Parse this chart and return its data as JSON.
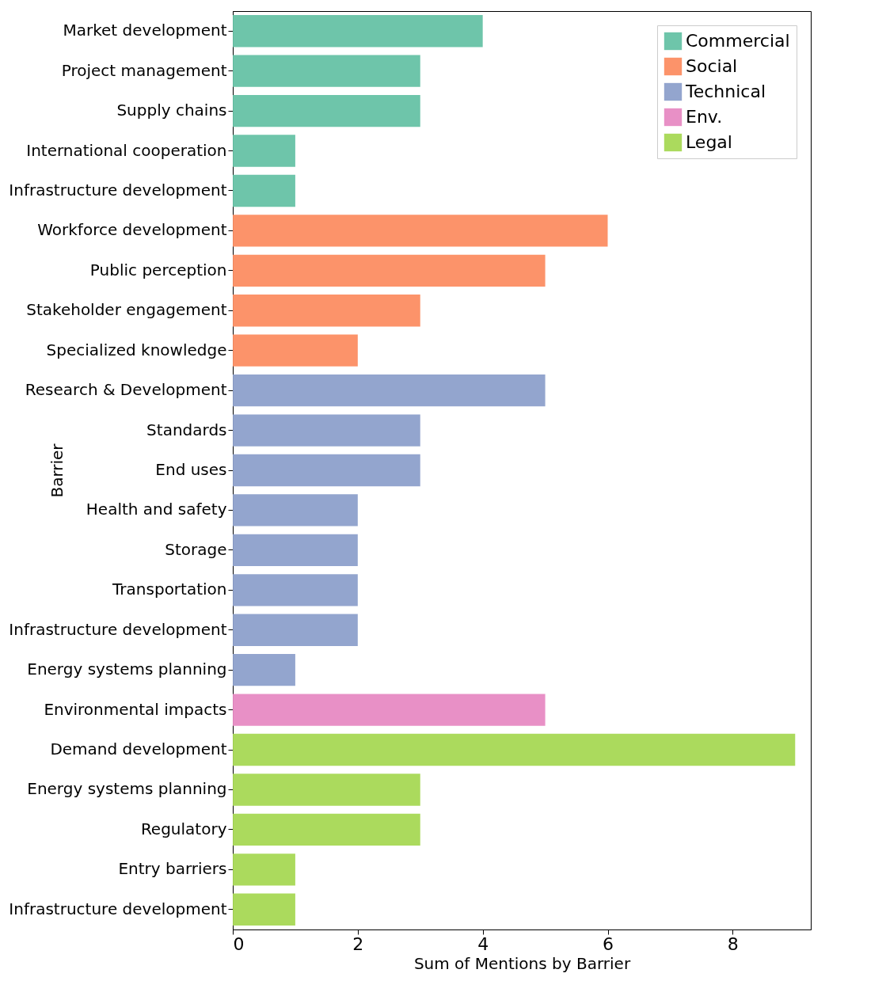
{
  "chart_data": {
    "type": "bar",
    "orientation": "horizontal",
    "xlabel": "Sum of Mentions by Barrier",
    "ylabel": "Barrier",
    "categories": [
      "Market development",
      "Project management",
      "Supply chains",
      "International cooperation",
      "Infrastructure development",
      "Workforce development",
      "Public perception",
      "Stakeholder engagement",
      "Specialized knowledge",
      "Research & Development",
      "Standards",
      "End uses",
      "Health and safety",
      "Storage",
      "Transportation",
      "Infrastructure development",
      "Energy systems planning",
      "Environmental impacts",
      "Demand development",
      "Energy systems planning",
      "Regulatory",
      "Entry barriers",
      "Infrastructure development"
    ],
    "series": [
      {
        "name": "Commercial",
        "color": "#66c2a5",
        "values": [
          4,
          3,
          3,
          1,
          1,
          null,
          null,
          null,
          null,
          null,
          null,
          null,
          null,
          null,
          null,
          null,
          null,
          null,
          null,
          null,
          null,
          null,
          null
        ]
      },
      {
        "name": "Social",
        "color": "#fc8d62",
        "values": [
          null,
          null,
          null,
          null,
          null,
          6,
          5,
          3,
          2,
          null,
          null,
          null,
          null,
          null,
          null,
          null,
          null,
          null,
          null,
          null,
          null,
          null,
          null
        ]
      },
      {
        "name": "Technical",
        "color": "#8da0cb",
        "values": [
          null,
          null,
          null,
          null,
          null,
          null,
          null,
          null,
          null,
          5,
          3,
          3,
          2,
          2,
          2,
          2,
          1,
          null,
          null,
          null,
          null,
          null,
          null
        ]
      },
      {
        "name": "Env.",
        "color": "#e78ac3",
        "values": [
          null,
          null,
          null,
          null,
          null,
          null,
          null,
          null,
          null,
          null,
          null,
          null,
          null,
          null,
          null,
          null,
          null,
          5,
          null,
          null,
          null,
          null,
          null
        ]
      },
      {
        "name": "Legal",
        "color": "#a6d854",
        "values": [
          null,
          null,
          null,
          null,
          null,
          null,
          null,
          null,
          null,
          null,
          null,
          null,
          null,
          null,
          null,
          null,
          null,
          null,
          9,
          3,
          3,
          1,
          1
        ]
      }
    ],
    "xlim": [
      0,
      9.25
    ],
    "xticks": [
      0,
      2,
      4,
      6,
      8
    ],
    "grid": false,
    "legend": "top right"
  }
}
